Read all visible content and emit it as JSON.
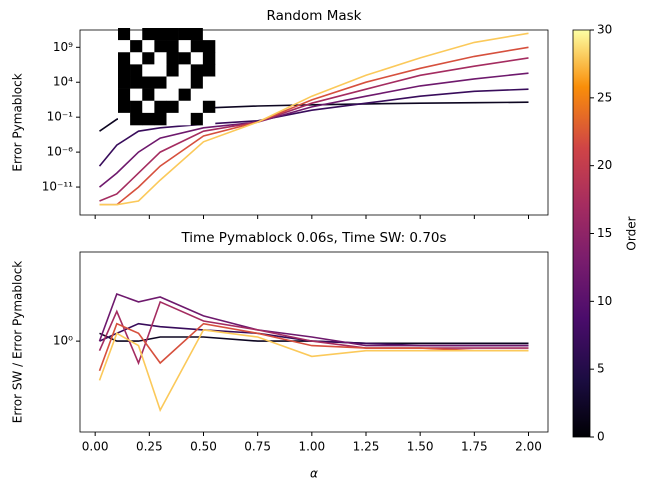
{
  "chart_data": [
    {
      "type": "line",
      "title": "Random Mask",
      "ylabel": "Error Pymablock",
      "ylog": true,
      "x": [
        0.02,
        0.1,
        0.2,
        0.3,
        0.5,
        0.75,
        1.0,
        1.25,
        1.5,
        1.75,
        2.0
      ],
      "xlim": [
        -0.07,
        2.09
      ],
      "xticks": [
        {
          "value": 0,
          "label": "0.00"
        },
        {
          "value": 0.25,
          "label": "0.25"
        },
        {
          "value": 0.5,
          "label": "0.50"
        },
        {
          "value": 0.75,
          "label": "0.75"
        },
        {
          "value": 1,
          "label": "1.00"
        },
        {
          "value": 1.25,
          "label": "1.25"
        },
        {
          "value": 1.5,
          "label": "1.50"
        },
        {
          "value": 1.75,
          "label": "1.75"
        },
        {
          "value": 2,
          "label": "2.00"
        }
      ],
      "ylim": [
        1e-15,
        300000000000.0
      ],
      "yticks": [
        {
          "value": 1e-11,
          "label": "10⁻¹¹"
        },
        {
          "value": 1e-06,
          "label": "10⁻⁶"
        },
        {
          "value": 0.1,
          "label": "10⁻¹"
        },
        {
          "value": 10000.0,
          "label": "10⁴"
        },
        {
          "value": 1000000000.0,
          "label": "10⁹"
        }
      ],
      "series": [
        {
          "order": 2,
          "values": [
            0.001,
            0.05,
            0.3,
            1,
            2,
            4,
            6,
            8,
            10,
            12,
            14
          ]
        },
        {
          "order": 7,
          "values": [
            1e-08,
            1e-05,
            0.001,
            0.003,
            0.01,
            0.03,
            1,
            10,
            100,
            500,
            1000
          ]
        },
        {
          "order": 12,
          "values": [
            1e-11,
            1e-09,
            1e-06,
            0.0001,
            0.003,
            0.02,
            3,
            100,
            3000,
            30000,
            200000
          ]
        },
        {
          "order": 17,
          "values": [
            1e-13,
            1e-12,
            1e-09,
            1e-06,
            0.001,
            0.02,
            10,
            1000,
            100000,
            2000000,
            30000000
          ]
        },
        {
          "order": 22,
          "values": [
            3e-14,
            3e-14,
            1e-11,
            1e-08,
            0.0002,
            0.02,
            30,
            10000,
            1000000,
            50000000,
            1000000000
          ]
        },
        {
          "order": 28,
          "values": [
            3e-14,
            3e-14,
            1e-13,
            1e-10,
            3e-05,
            0.02,
            100,
            100000,
            30000000,
            5000000000,
            100000000000
          ]
        }
      ],
      "mask": [
        [
          1,
          0,
          1,
          1,
          1,
          1,
          1,
          0
        ],
        [
          0,
          1,
          0,
          1,
          1,
          0,
          1,
          1
        ],
        [
          1,
          0,
          1,
          0,
          1,
          1,
          0,
          1
        ],
        [
          1,
          1,
          0,
          0,
          1,
          0,
          1,
          1
        ],
        [
          1,
          1,
          1,
          1,
          0,
          0,
          1,
          0
        ],
        [
          1,
          0,
          1,
          0,
          0,
          1,
          0,
          0
        ],
        [
          1,
          1,
          0,
          1,
          1,
          0,
          0,
          1
        ],
        [
          0,
          1,
          1,
          1,
          0,
          0,
          1,
          0
        ]
      ]
    },
    {
      "type": "line",
      "title": "Time Pymablock 0.06s, Time SW: 0.70s",
      "ylabel": "Error SW / Error Pymablock",
      "xlabel": "α",
      "ylog": true,
      "x": [
        0.02,
        0.1,
        0.2,
        0.3,
        0.5,
        0.75,
        1.0,
        1.25,
        1.5,
        1.75,
        2.0
      ],
      "xlim": [
        -0.07,
        2.09
      ],
      "xticks": [
        {
          "value": 0,
          "label": "0.00"
        },
        {
          "value": 0.25,
          "label": "0.25"
        },
        {
          "value": 0.5,
          "label": "0.50"
        },
        {
          "value": 0.75,
          "label": "0.75"
        },
        {
          "value": 1,
          "label": "1.00"
        },
        {
          "value": 1.25,
          "label": "1.25"
        },
        {
          "value": 1.5,
          "label": "1.50"
        },
        {
          "value": 1.75,
          "label": "1.75"
        },
        {
          "value": 2,
          "label": "2.00"
        }
      ],
      "ylim": [
        0.12,
        8
      ],
      "yticks": [
        {
          "value": 1,
          "label": "10⁰"
        }
      ],
      "series": [
        {
          "order": 2,
          "values": [
            1.2,
            1,
            1,
            1.1,
            1.1,
            1,
            1,
            0.95,
            0.95,
            0.95,
            0.95
          ]
        },
        {
          "order": 7,
          "values": [
            1,
            1.2,
            1.5,
            1.4,
            1.3,
            1.2,
            1,
            0.95,
            0.9,
            0.9,
            0.9
          ]
        },
        {
          "order": 12,
          "values": [
            1,
            3,
            2.5,
            2.8,
            1.8,
            1.3,
            1.1,
            0.9,
            0.9,
            0.9,
            0.9
          ]
        },
        {
          "order": 17,
          "values": [
            0.8,
            2,
            0.6,
            2.5,
            1.6,
            1.3,
            1,
            0.85,
            0.85,
            0.85,
            0.85
          ]
        },
        {
          "order": 22,
          "values": [
            0.5,
            1.5,
            1.2,
            0.6,
            1.5,
            1.2,
            0.9,
            0.85,
            0.85,
            0.8,
            0.8
          ]
        },
        {
          "order": 28,
          "values": [
            0.4,
            1.2,
            0.9,
            0.2,
            1.3,
            1.1,
            0.7,
            0.8,
            0.8,
            0.8,
            0.8
          ]
        }
      ]
    },
    {
      "type": "colorbar",
      "label": "Order",
      "colormap": "inferno",
      "lim": [
        0,
        30
      ],
      "ticks": [
        0,
        5,
        10,
        15,
        20,
        25,
        30
      ]
    }
  ]
}
